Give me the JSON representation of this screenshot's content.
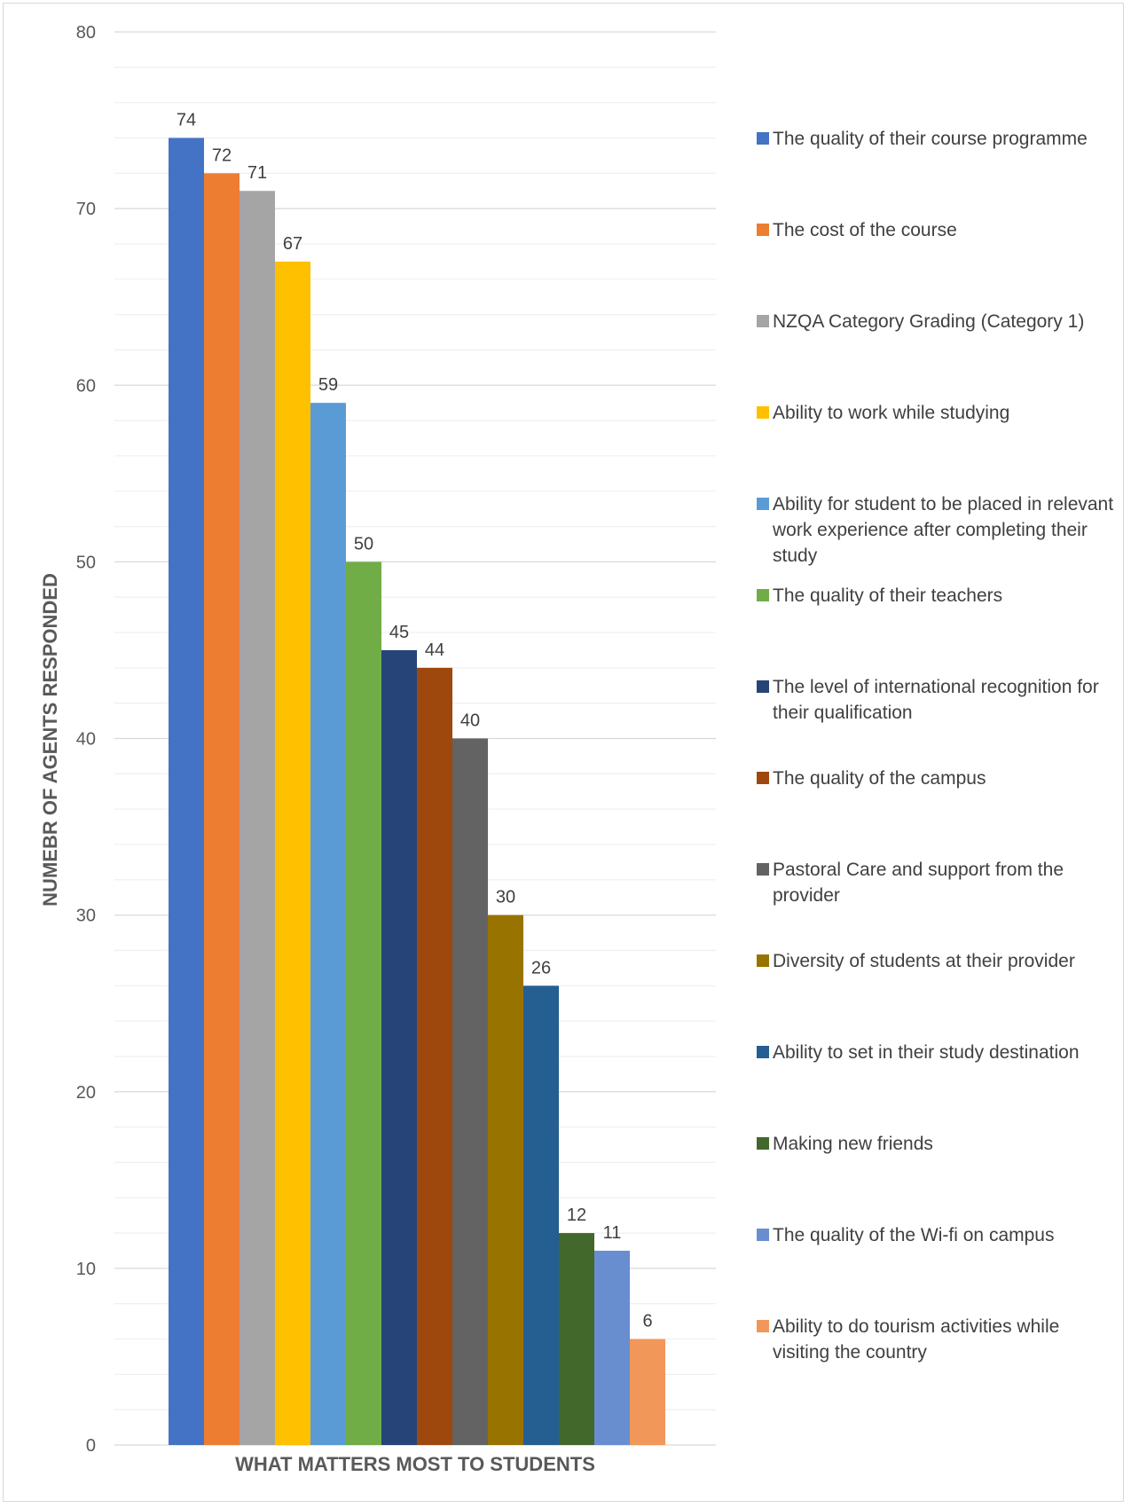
{
  "chart_data": {
    "type": "bar",
    "title": "",
    "xlabel": "WHAT MATTERS MOST TO STUDENTS",
    "ylabel": "NUMEBR OF AGENTS RESPONDED",
    "ylim": [
      0,
      80
    ],
    "yticks": [
      0,
      10,
      20,
      30,
      40,
      50,
      60,
      70,
      80
    ],
    "grid": true,
    "legend_position": "right",
    "series": [
      {
        "name": "The quality of their course programme",
        "value": 74,
        "color": "#4472C4"
      },
      {
        "name": "The cost of the course",
        "value": 72,
        "color": "#ED7D31"
      },
      {
        "name": "NZQA Category Grading (Category 1)",
        "value": 71,
        "color": "#A5A5A5"
      },
      {
        "name": "Ability to work while studying",
        "value": 67,
        "color": "#FFC000"
      },
      {
        "name": "Ability for student to be placed in relevant work experience after completing their study",
        "value": 59,
        "color": "#5B9BD5"
      },
      {
        "name": "The quality of their teachers",
        "value": 50,
        "color": "#70AD47"
      },
      {
        "name": "The level of international recognition for their qualification",
        "value": 45,
        "color": "#264478"
      },
      {
        "name": "The quality of the campus",
        "value": 44,
        "color": "#9E480E"
      },
      {
        "name": "Pastoral Care and support from the provider",
        "value": 40,
        "color": "#636363"
      },
      {
        "name": "Diversity of students at their provider",
        "value": 30,
        "color": "#997300"
      },
      {
        "name": "Ability to set   in their study destination",
        "value": 26,
        "color": "#255E91"
      },
      {
        "name": "Making new friends",
        "value": 12,
        "color": "#43682B"
      },
      {
        "name": "The quality of the Wi-fi on campus",
        "value": 11,
        "color": "#698ED0"
      },
      {
        "name": "Ability to do tourism activities while visiting the country",
        "value": 6,
        "color": "#F1975A"
      }
    ]
  }
}
